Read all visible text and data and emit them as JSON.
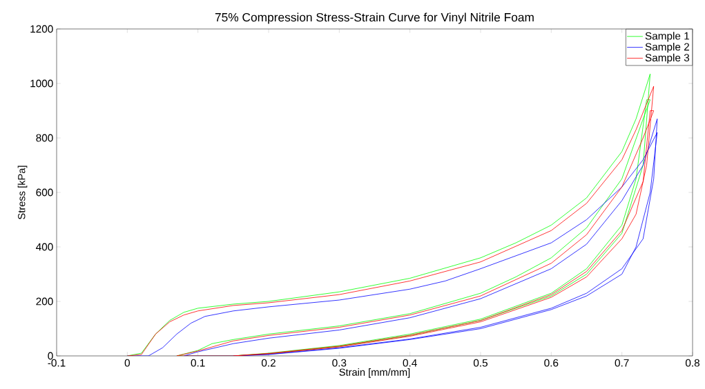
{
  "chart_data": {
    "type": "line",
    "title": "75% Compression Stress-Strain Curve for Vinyl Nitrile Foam",
    "xlabel": "Strain [mm/mm]",
    "ylabel": "Stress [kPa]",
    "xlim": [
      -0.1,
      0.8
    ],
    "xticks": [
      -0.1,
      0,
      0.1,
      0.2,
      0.3,
      0.4,
      0.5,
      0.6,
      0.7,
      0.8
    ],
    "ylim": [
      0,
      1200
    ],
    "yticks": [
      0,
      200,
      400,
      600,
      800,
      1000,
      1200
    ],
    "legend": "top right",
    "grid": false,
    "series": [
      {
        "name": "Sample 1",
        "color": "#00ff00",
        "x": [
          0,
          0.02,
          0.04,
          0.06,
          0.08,
          0.1,
          0.15,
          0.2,
          0.3,
          0.4,
          0.5,
          0.55,
          0.6,
          0.65,
          0.7,
          0.72,
          0.74,
          0.73,
          0.7,
          0.65,
          0.6,
          0.5,
          0.4,
          0.3,
          0.2,
          0.15,
          0.07,
          0.1,
          0.12,
          0.15,
          0.2,
          0.3,
          0.4,
          0.5,
          0.55,
          0.6,
          0.65,
          0.7,
          0.73,
          0.74,
          0.735,
          0.72,
          0.7,
          0.65,
          0.6,
          0.5,
          0.4,
          0.3,
          0.2,
          0.15
        ],
        "values": [
          0,
          10,
          80,
          130,
          160,
          175,
          190,
          200,
          235,
          285,
          360,
          415,
          480,
          580,
          750,
          870,
          1035,
          700,
          450,
          300,
          220,
          130,
          75,
          35,
          8,
          0,
          0,
          20,
          45,
          60,
          80,
          110,
          155,
          230,
          290,
          360,
          470,
          650,
          870,
          940,
          940,
          650,
          480,
          320,
          230,
          135,
          80,
          38,
          10,
          0
        ]
      },
      {
        "name": "Sample 2",
        "color": "#0000ff",
        "x": [
          0,
          0.03,
          0.05,
          0.07,
          0.09,
          0.11,
          0.15,
          0.2,
          0.3,
          0.4,
          0.45,
          0.5,
          0.6,
          0.65,
          0.7,
          0.73,
          0.75,
          0.74,
          0.72,
          0.7,
          0.65,
          0.6,
          0.5,
          0.4,
          0.3,
          0.2,
          0.15,
          0.08,
          0.1,
          0.15,
          0.2,
          0.3,
          0.4,
          0.5,
          0.6,
          0.65,
          0.7,
          0.73,
          0.75,
          0.745,
          0.73,
          0.7,
          0.65,
          0.6,
          0.5,
          0.4,
          0.3,
          0.2,
          0.15
        ],
        "values": [
          0,
          0,
          30,
          80,
          120,
          145,
          165,
          180,
          205,
          245,
          275,
          320,
          415,
          500,
          620,
          720,
          820,
          600,
          400,
          300,
          220,
          170,
          100,
          60,
          28,
          5,
          0,
          0,
          15,
          45,
          65,
          95,
          140,
          210,
          320,
          410,
          570,
          700,
          870,
          650,
          430,
          320,
          230,
          175,
          105,
          62,
          30,
          6,
          0
        ]
      },
      {
        "name": "Sample 3",
        "color": "#ff0000",
        "x": [
          0,
          0.02,
          0.04,
          0.06,
          0.08,
          0.1,
          0.15,
          0.2,
          0.3,
          0.4,
          0.5,
          0.6,
          0.65,
          0.7,
          0.72,
          0.745,
          0.735,
          0.72,
          0.7,
          0.65,
          0.6,
          0.5,
          0.4,
          0.3,
          0.2,
          0.15,
          0.07,
          0.1,
          0.15,
          0.2,
          0.3,
          0.4,
          0.5,
          0.6,
          0.65,
          0.7,
          0.73,
          0.745,
          0.74,
          0.73,
          0.7,
          0.65,
          0.6,
          0.5,
          0.4,
          0.3,
          0.2,
          0.15
        ],
        "values": [
          0,
          5,
          80,
          125,
          150,
          165,
          185,
          195,
          225,
          275,
          345,
          460,
          560,
          720,
          830,
          990,
          700,
          520,
          430,
          290,
          215,
          125,
          72,
          33,
          8,
          0,
          0,
          18,
          55,
          75,
          105,
          150,
          220,
          340,
          445,
          620,
          800,
          900,
          900,
          640,
          460,
          310,
          225,
          130,
          76,
          36,
          9,
          0
        ]
      }
    ]
  }
}
